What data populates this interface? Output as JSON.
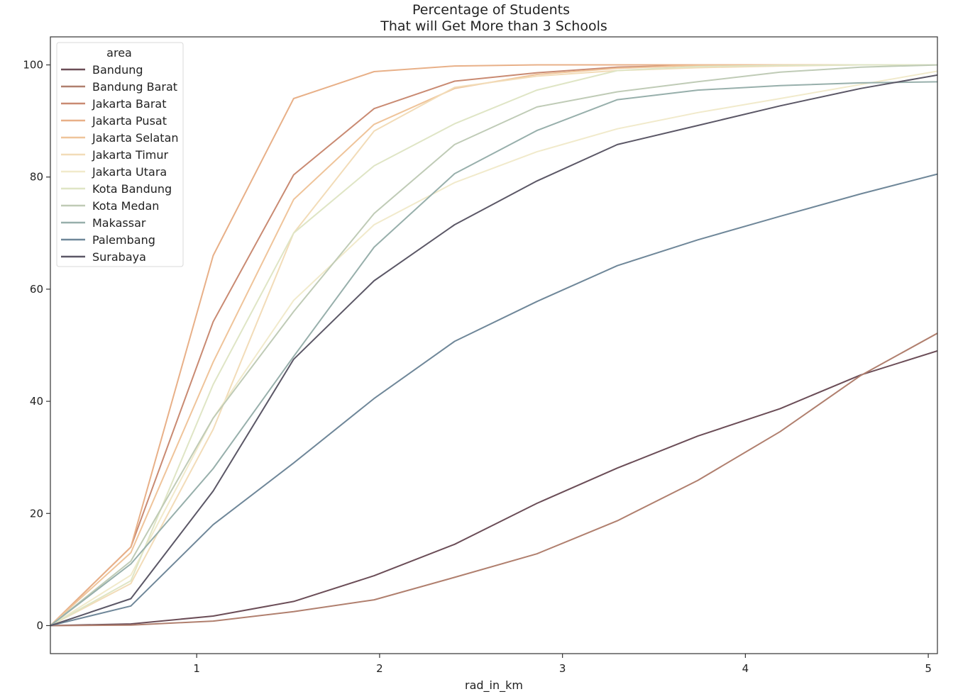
{
  "chart_data": {
    "type": "line",
    "title": "Percentage of Students",
    "subtitle": "That will Get More than 3 Schools",
    "xlabel": "rad_in_km",
    "ylabel": "",
    "xlim": [
      0.2,
      5.05
    ],
    "ylim": [
      -5,
      105
    ],
    "xticks": [
      1,
      2,
      3,
      4,
      5
    ],
    "yticks": [
      0,
      20,
      40,
      60,
      80,
      100
    ],
    "grid": false,
    "legend_title": "area",
    "legend_position": "top-left",
    "x": [
      0.2,
      0.64,
      1.09,
      1.53,
      1.97,
      2.41,
      2.86,
      3.3,
      3.74,
      4.19,
      4.63,
      5.07
    ],
    "series": [
      {
        "name": "Bandung",
        "color": "#6b4d57",
        "values": [
          0,
          0.3,
          1.7,
          4.3,
          8.9,
          14.5,
          21.8,
          28.1,
          33.8,
          38.7,
          44.7,
          49.2
        ]
      },
      {
        "name": "Bandung Barat",
        "color": "#b07f6e",
        "values": [
          0,
          0.1,
          0.8,
          2.5,
          4.6,
          8.6,
          12.8,
          18.7,
          25.9,
          34.6,
          44.6,
          52.5
        ]
      },
      {
        "name": "Jakarta Barat",
        "color": "#c98a72",
        "values": [
          0,
          14.0,
          54.2,
          80.4,
          92.2,
          97.1,
          98.6,
          99.6,
          99.9,
          100,
          100,
          100
        ]
      },
      {
        "name": "Jakarta Pusat",
        "color": "#e8b088",
        "values": [
          0,
          14.0,
          66.0,
          94.0,
          98.8,
          99.8,
          100,
          100,
          100,
          100,
          100,
          100
        ]
      },
      {
        "name": "Jakarta Selatan",
        "color": "#efc49a",
        "values": [
          0,
          13.0,
          47.0,
          76.0,
          89.4,
          95.8,
          98.3,
          99.4,
          99.9,
          100,
          100,
          100
        ]
      },
      {
        "name": "Jakarta Timur",
        "color": "#f2dcb8",
        "values": [
          0,
          7.5,
          35.0,
          70.0,
          88.2,
          96.0,
          98.0,
          99.0,
          99.5,
          99.8,
          100,
          100
        ]
      },
      {
        "name": "Jakarta Utara",
        "color": "#f1eacb",
        "values": [
          0,
          9.0,
          37.0,
          58.0,
          71.5,
          79.0,
          84.5,
          88.6,
          91.5,
          94.0,
          96.5,
          99.0
        ]
      },
      {
        "name": "Kota Bandung",
        "color": "#dfe5c5",
        "values": [
          0,
          8.0,
          43.0,
          70.0,
          82.0,
          89.5,
          95.5,
          99.0,
          99.7,
          99.9,
          100,
          100
        ]
      },
      {
        "name": "Kota Medan",
        "color": "#bfcbb6",
        "values": [
          0,
          11.5,
          37.0,
          56.0,
          73.5,
          85.8,
          92.5,
          95.2,
          97.0,
          98.7,
          99.6,
          100
        ]
      },
      {
        "name": "Makassar",
        "color": "#97afab",
        "values": [
          0,
          11.0,
          28.0,
          48.0,
          67.5,
          80.6,
          88.3,
          93.8,
          95.5,
          96.3,
          96.8,
          97.0
        ]
      },
      {
        "name": "Palembang",
        "color": "#6f8799",
        "values": [
          0,
          3.5,
          18.0,
          29.0,
          40.5,
          50.7,
          57.8,
          64.2,
          68.8,
          73.0,
          77.0,
          80.7
        ]
      },
      {
        "name": "Surabaya",
        "color": "#5b5766",
        "values": [
          0,
          4.8,
          24.0,
          47.5,
          61.5,
          71.5,
          79.3,
          85.8,
          89.2,
          92.7,
          95.8,
          98.3
        ]
      }
    ]
  }
}
